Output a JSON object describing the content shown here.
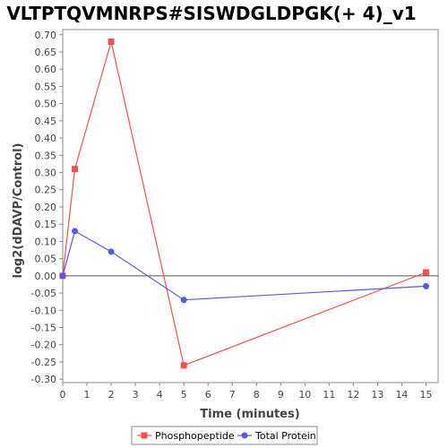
{
  "chart_data": {
    "type": "line",
    "title": "VLTPTQVMNRPS#SISWDGLDPGK(+ 4)_v1",
    "xlabel": "Time (minutes)",
    "ylabel": "log2(dDAVP/Control)",
    "xlim": [
      0,
      15.5
    ],
    "ylim": [
      -0.31,
      0.715
    ],
    "x_ticks": [
      0,
      1,
      2,
      3,
      4,
      5,
      6,
      7,
      8,
      9,
      10,
      11,
      12,
      13,
      14,
      15
    ],
    "y_ticks": [
      -0.3,
      -0.25,
      -0.2,
      -0.15,
      -0.1,
      -0.05,
      0.0,
      0.05,
      0.1,
      0.15,
      0.2,
      0.25,
      0.3,
      0.35,
      0.4,
      0.45,
      0.5,
      0.55,
      0.6,
      0.65,
      0.7
    ],
    "zero_line": true,
    "grid": false,
    "legend_position": "bottom",
    "series": [
      {
        "name": "Phosphopeptide",
        "color": "#f05050",
        "marker": "square",
        "x": [
          0,
          0.5,
          2,
          5,
          15
        ],
        "y": [
          0.0,
          0.31,
          0.68,
          -0.26,
          0.01
        ]
      },
      {
        "name": "Total Protein",
        "color": "#5858e8",
        "marker": "circle",
        "x": [
          0,
          0.5,
          2,
          5,
          15
        ],
        "y": [
          0.0,
          0.13,
          0.07,
          -0.07,
          -0.03
        ]
      }
    ]
  }
}
